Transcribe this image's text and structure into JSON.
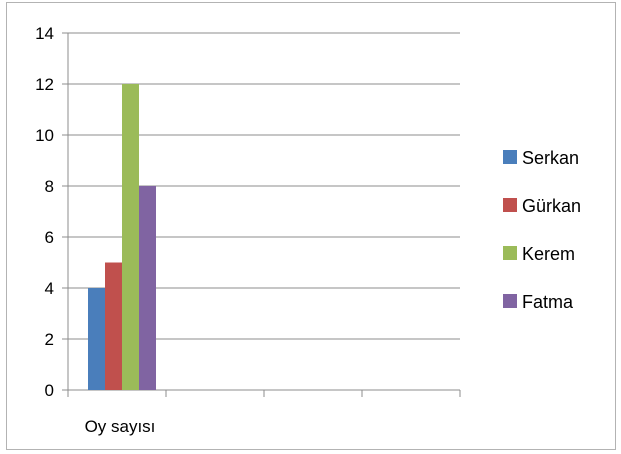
{
  "chart_data": {
    "type": "bar",
    "categories": [
      "Oy sayısı"
    ],
    "series": [
      {
        "name": "Serkan",
        "values": [
          4
        ],
        "color": "#4a7ebb"
      },
      {
        "name": "Gürkan",
        "values": [
          5
        ],
        "color": "#c0504d"
      },
      {
        "name": "Kerem",
        "values": [
          12
        ],
        "color": "#9bbb59"
      },
      {
        "name": "Fatma",
        "values": [
          8
        ],
        "color": "#8064a2"
      }
    ],
    "ylim": [
      0,
      14
    ],
    "yticks": [
      "0",
      "2",
      "4",
      "6",
      "8",
      "10",
      "12",
      "14"
    ],
    "grid": true,
    "legend": "right",
    "title": "",
    "xlabel": "",
    "ylabel": ""
  }
}
